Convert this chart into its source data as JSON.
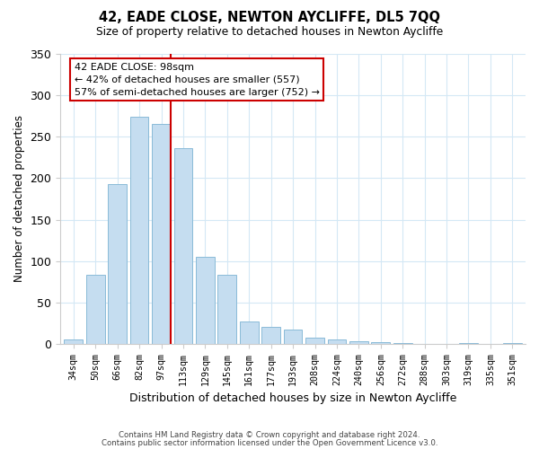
{
  "title": "42, EADE CLOSE, NEWTON AYCLIFFE, DL5 7QQ",
  "subtitle": "Size of property relative to detached houses in Newton Aycliffe",
  "xlabel": "Distribution of detached houses by size in Newton Aycliffe",
  "ylabel": "Number of detached properties",
  "categories": [
    "34sqm",
    "50sqm",
    "66sqm",
    "82sqm",
    "97sqm",
    "113sqm",
    "129sqm",
    "145sqm",
    "161sqm",
    "177sqm",
    "193sqm",
    "208sqm",
    "224sqm",
    "240sqm",
    "256sqm",
    "272sqm",
    "288sqm",
    "303sqm",
    "319sqm",
    "335sqm",
    "351sqm"
  ],
  "values": [
    5,
    83,
    193,
    274,
    265,
    236,
    105,
    83,
    27,
    20,
    17,
    8,
    5,
    3,
    2,
    1,
    0,
    0,
    1,
    0,
    1
  ],
  "bar_color": "#c5ddf0",
  "bar_edge_color": "#8abbd8",
  "highlight_index": 4,
  "highlight_color": "#cc0000",
  "ylim": [
    0,
    350
  ],
  "yticks": [
    0,
    50,
    100,
    150,
    200,
    250,
    300,
    350
  ],
  "annotation_title": "42 EADE CLOSE: 98sqm",
  "annotation_line1": "← 42% of detached houses are smaller (557)",
  "annotation_line2": "57% of semi-detached houses are larger (752) →",
  "footer_line1": "Contains HM Land Registry data © Crown copyright and database right 2024.",
  "footer_line2": "Contains public sector information licensed under the Open Government Licence v3.0.",
  "grid_color": "#d4e8f5",
  "background_color": "#ffffff"
}
